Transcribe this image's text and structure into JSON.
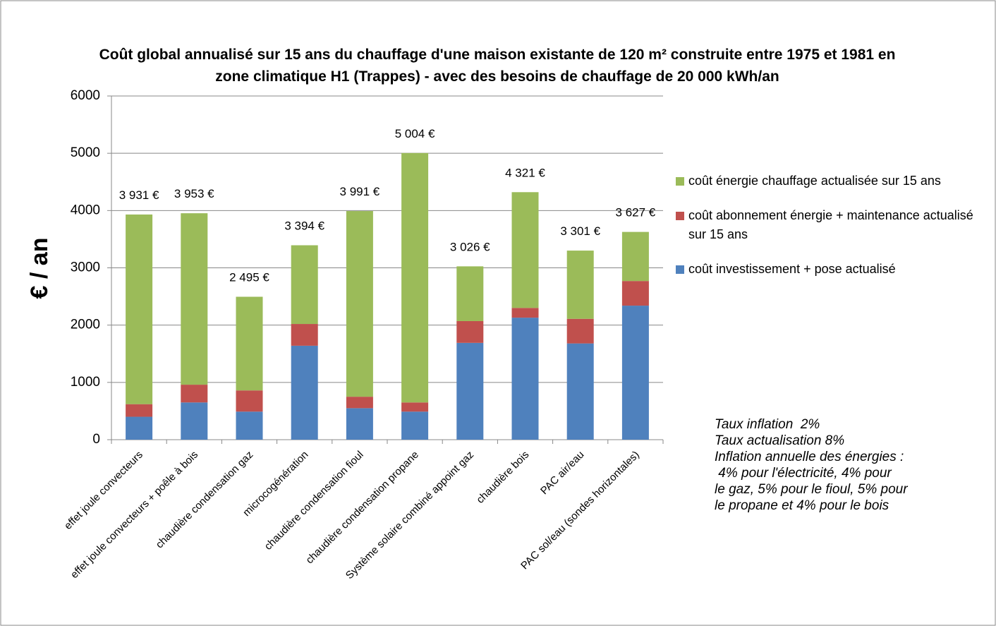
{
  "chart_data": {
    "type": "stacked_bar",
    "title": "Coût global annualisé sur 15 ans du chauffage d'une maison existante de 120 m² construite entre 1975 et 1981 en  zone climatique H1 (Trappes) - avec des besoins de chauffage de 20 000 kWh/an",
    "y_label": "€ / an",
    "categories": [
      "effet joule convecteurs",
      "effet joule convecteurs + poêle à bois",
      "chaudière condensation gaz",
      "microcogénération",
      "chaudière condensation fioul",
      "chaudière condensation propane",
      "Système solaire combiné appoint gaz",
      "chaudière bois",
      "PAC air/eau",
      "PAC sol/eau (sondes horizontales)"
    ],
    "series": [
      {
        "name": "coût investissement + pose actualisé",
        "color": "#4f81bd",
        "values": [
          400,
          650,
          490,
          1640,
          550,
          490,
          1690,
          2130,
          1680,
          2340
        ]
      },
      {
        "name": "coût abonnement énergie + maintenance actualisé sur 15 ans",
        "color": "#c0504d",
        "values": [
          220,
          310,
          370,
          380,
          200,
          160,
          380,
          170,
          430,
          430
        ]
      },
      {
        "name": "coût énergie chauffage actualisée sur 15 ans",
        "color": "#9bbb59",
        "values": [
          3311,
          2993,
          1635,
          1374,
          3241,
          4354,
          956,
          2021,
          1191,
          857
        ]
      }
    ],
    "totals": [
      3931,
      3953,
      2495,
      3394,
      3991,
      5004,
      3026,
      4321,
      3301,
      3627
    ],
    "total_labels": [
      "3 931 €",
      "3 953 €",
      "2 495 €",
      "3 394 €",
      "3 991 €",
      "5 004 €",
      "3 026 €",
      "4 321 €",
      "3 301 €",
      "3 627 €"
    ],
    "ylim": [
      0,
      6000
    ],
    "yticks": [
      0,
      1000,
      2000,
      3000,
      4000,
      5000,
      6000
    ],
    "grid": true,
    "notes": [
      "Taux inflation  2%",
      "Taux actualisation 8%",
      "Inflation annuelle des énergies :",
      " 4% pour l'électricité, 4% pour",
      "le gaz, 5% pour le fioul, 5% pour",
      "le propane et 4% pour le bois"
    ]
  }
}
